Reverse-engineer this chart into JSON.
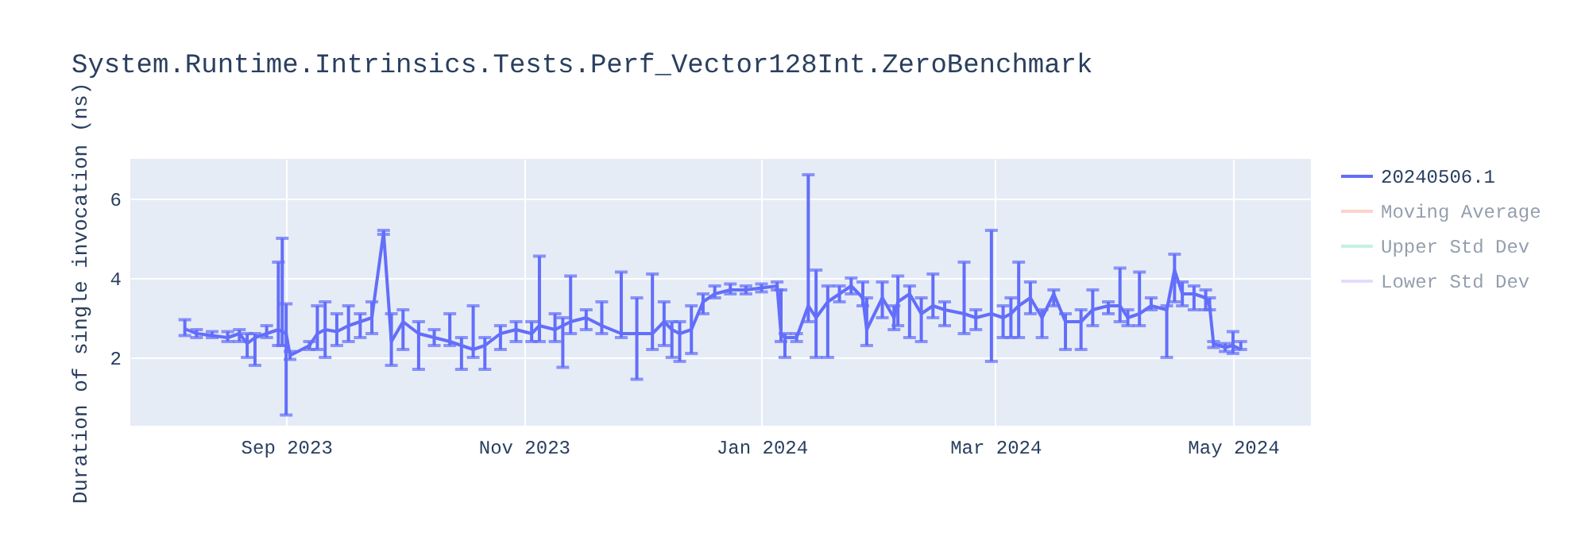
{
  "chart_data": {
    "type": "line",
    "title": "System.Runtime.Intrinsics.Tests.Perf_Vector128Int.ZeroBenchmark",
    "ylabel": "Duration of single invocation (ns)",
    "x": [
      "2023-08-06",
      "2023-08-09",
      "2023-08-13",
      "2023-08-17",
      "2023-08-20",
      "2023-08-22",
      "2023-08-24",
      "2023-08-27",
      "2023-08-30",
      "2023-08-31",
      "2023-09-01",
      "2023-09-02",
      "2023-09-07",
      "2023-09-09",
      "2023-09-11",
      "2023-09-14",
      "2023-09-17",
      "2023-09-20",
      "2023-09-23",
      "2023-09-26",
      "2023-09-28",
      "2023-10-01",
      "2023-10-05",
      "2023-10-09",
      "2023-10-13",
      "2023-10-16",
      "2023-10-19",
      "2023-10-22",
      "2023-10-26",
      "2023-10-30",
      "2023-11-03",
      "2023-11-05",
      "2023-11-09",
      "2023-11-11",
      "2023-11-13",
      "2023-11-17",
      "2023-11-21",
      "2023-11-26",
      "2023-11-30",
      "2023-12-04",
      "2023-12-07",
      "2023-12-09",
      "2023-12-11",
      "2023-12-14",
      "2023-12-17",
      "2023-12-20",
      "2023-12-24",
      "2023-12-28",
      "2024-01-01",
      "2024-01-05",
      "2024-01-06",
      "2024-01-07",
      "2024-01-10",
      "2024-01-13",
      "2024-01-15",
      "2024-01-18",
      "2024-01-21",
      "2024-01-24",
      "2024-01-27",
      "2024-01-28",
      "2024-02-01",
      "2024-02-04",
      "2024-02-05",
      "2024-02-08",
      "2024-02-11",
      "2024-02-14",
      "2024-02-17",
      "2024-02-22",
      "2024-02-25",
      "2024-02-29",
      "2024-03-03",
      "2024-03-05",
      "2024-03-07",
      "2024-03-10",
      "2024-03-13",
      "2024-03-16",
      "2024-03-19",
      "2024-03-23",
      "2024-03-26",
      "2024-03-30",
      "2024-04-02",
      "2024-04-04",
      "2024-04-07",
      "2024-04-10",
      "2024-04-14",
      "2024-04-16",
      "2024-04-18",
      "2024-04-21",
      "2024-04-24",
      "2024-04-25",
      "2024-04-26",
      "2024-04-29",
      "2024-05-01",
      "2024-05-03"
    ],
    "series": [
      {
        "name": "20240506.1",
        "color": "#636efa",
        "values": [
          2.72,
          2.6,
          2.55,
          2.5,
          2.6,
          2.35,
          2.5,
          2.6,
          2.7,
          2.65,
          2.6,
          2.05,
          2.3,
          2.6,
          2.7,
          2.65,
          2.8,
          2.9,
          3.0,
          5.15,
          2.4,
          2.9,
          2.6,
          2.5,
          2.4,
          2.3,
          2.2,
          2.3,
          2.6,
          2.7,
          2.6,
          2.8,
          2.7,
          2.8,
          2.9,
          3.0,
          2.8,
          2.6,
          2.6,
          2.6,
          2.9,
          2.7,
          2.6,
          2.7,
          3.4,
          3.6,
          3.7,
          3.7,
          3.75,
          3.8,
          2.6,
          2.5,
          2.5,
          3.3,
          3.0,
          3.4,
          3.6,
          3.8,
          3.5,
          2.7,
          3.5,
          3.0,
          3.4,
          3.6,
          3.1,
          3.3,
          3.2,
          3.1,
          3.0,
          3.1,
          3.0,
          3.1,
          3.3,
          3.5,
          3.0,
          3.6,
          2.9,
          2.9,
          3.2,
          3.3,
          3.3,
          3.0,
          3.1,
          3.3,
          3.2,
          4.2,
          3.6,
          3.6,
          3.5,
          3.3,
          2.35,
          2.25,
          2.3,
          2.2
        ],
        "errors": [
          [
            2.55,
            2.95
          ],
          [
            2.5,
            2.7
          ],
          [
            2.5,
            2.65
          ],
          [
            2.4,
            2.65
          ],
          [
            2.4,
            2.7
          ],
          [
            2.0,
            2.6
          ],
          [
            1.8,
            2.6
          ],
          [
            2.5,
            2.8
          ],
          [
            2.3,
            4.4
          ],
          [
            2.3,
            5.0
          ],
          [
            0.55,
            3.35
          ],
          [
            1.95,
            2.15
          ],
          [
            2.2,
            2.4
          ],
          [
            2.2,
            3.3
          ],
          [
            2.0,
            3.4
          ],
          [
            2.3,
            3.1
          ],
          [
            2.4,
            3.3
          ],
          [
            2.5,
            3.1
          ],
          [
            2.6,
            3.4
          ],
          [
            5.1,
            5.2
          ],
          [
            1.8,
            3.1
          ],
          [
            2.2,
            3.2
          ],
          [
            1.7,
            2.9
          ],
          [
            2.3,
            2.7
          ],
          [
            2.3,
            3.1
          ],
          [
            1.7,
            2.5
          ],
          [
            2.0,
            3.3
          ],
          [
            1.7,
            2.5
          ],
          [
            2.2,
            2.8
          ],
          [
            2.4,
            2.9
          ],
          [
            2.4,
            2.9
          ],
          [
            2.4,
            4.55
          ],
          [
            2.4,
            3.1
          ],
          [
            1.75,
            3.0
          ],
          [
            2.6,
            4.05
          ],
          [
            2.7,
            3.2
          ],
          [
            2.6,
            3.4
          ],
          [
            2.5,
            4.15
          ],
          [
            1.45,
            3.5
          ],
          [
            2.2,
            4.1
          ],
          [
            2.3,
            3.4
          ],
          [
            2.0,
            2.9
          ],
          [
            1.9,
            2.9
          ],
          [
            2.1,
            3.3
          ],
          [
            3.1,
            3.6
          ],
          [
            3.5,
            3.8
          ],
          [
            3.6,
            3.85
          ],
          [
            3.6,
            3.8
          ],
          [
            3.65,
            3.85
          ],
          [
            3.7,
            3.9
          ],
          [
            2.4,
            3.7
          ],
          [
            2.0,
            2.6
          ],
          [
            2.4,
            2.6
          ],
          [
            2.9,
            6.6
          ],
          [
            2.0,
            4.2
          ],
          [
            2.0,
            3.8
          ],
          [
            3.4,
            3.8
          ],
          [
            3.6,
            4.0
          ],
          [
            3.3,
            3.9
          ],
          [
            2.3,
            3.5
          ],
          [
            3.0,
            3.9
          ],
          [
            2.7,
            3.3
          ],
          [
            2.8,
            4.05
          ],
          [
            2.5,
            3.8
          ],
          [
            2.4,
            3.5
          ],
          [
            3.0,
            4.1
          ],
          [
            2.8,
            3.4
          ],
          [
            2.6,
            4.4
          ],
          [
            2.7,
            3.2
          ],
          [
            1.9,
            5.2
          ],
          [
            2.5,
            3.3
          ],
          [
            2.5,
            3.5
          ],
          [
            2.5,
            4.4
          ],
          [
            3.1,
            3.9
          ],
          [
            2.5,
            3.2
          ],
          [
            3.3,
            3.7
          ],
          [
            2.2,
            3.1
          ],
          [
            2.2,
            3.2
          ],
          [
            2.8,
            3.7
          ],
          [
            3.1,
            3.4
          ],
          [
            2.9,
            4.25
          ],
          [
            2.8,
            3.2
          ],
          [
            2.8,
            4.15
          ],
          [
            3.2,
            3.5
          ],
          [
            2.0,
            3.3
          ],
          [
            3.4,
            4.6
          ],
          [
            3.3,
            3.9
          ],
          [
            3.2,
            3.8
          ],
          [
            3.2,
            3.7
          ],
          [
            3.2,
            3.5
          ],
          [
            2.25,
            2.4
          ],
          [
            2.15,
            2.35
          ],
          [
            2.1,
            2.65
          ],
          [
            2.2,
            2.4
          ]
        ]
      },
      {
        "name": "Moving Average",
        "color": "#f4a897",
        "values": [
          null,
          null,
          null,
          null,
          null,
          null,
          null,
          null,
          null,
          null,
          null,
          null,
          null,
          null,
          null,
          null,
          null,
          null,
          null,
          null,
          null,
          null,
          null,
          null,
          null,
          null,
          null,
          null,
          null,
          null,
          null,
          null,
          null,
          null,
          null,
          null,
          null,
          null,
          null,
          null,
          null,
          null,
          null,
          null,
          null,
          null,
          null,
          null,
          null,
          null,
          null,
          null,
          null,
          null,
          null,
          null,
          null,
          null,
          null,
          null,
          null,
          null,
          null,
          null,
          null,
          null,
          null,
          null,
          null,
          null,
          null,
          null,
          null,
          null,
          null,
          null,
          null,
          null,
          null,
          null,
          null,
          null,
          null,
          null,
          null,
          null,
          null,
          null,
          null,
          null,
          null,
          null,
          null,
          null
        ]
      },
      {
        "name": "Upper Std Dev",
        "color": "#8de6c6",
        "values": [
          null,
          null,
          null,
          null,
          null,
          null,
          null,
          null,
          null,
          null,
          null,
          null,
          null,
          null,
          null,
          null,
          null,
          null,
          null,
          null,
          null,
          null,
          null,
          null,
          null,
          null,
          null,
          null,
          null,
          null,
          null,
          null,
          null,
          null,
          null,
          null,
          null,
          null,
          null,
          null,
          null,
          null,
          null,
          null,
          null,
          null,
          null,
          null,
          null,
          null,
          null,
          null,
          null,
          null,
          null,
          null,
          null,
          null,
          null,
          null,
          null,
          null,
          null,
          null,
          null,
          null,
          null,
          null,
          null,
          null,
          null,
          null,
          null,
          null,
          null,
          null,
          null,
          null,
          null,
          null,
          null,
          null,
          null,
          null,
          null,
          null,
          null,
          null,
          null,
          null,
          null,
          null,
          null,
          null
        ]
      },
      {
        "name": "Lower Std Dev",
        "color": "#ccbbf9",
        "values": [
          null,
          null,
          null,
          null,
          null,
          null,
          null,
          null,
          null,
          null,
          null,
          null,
          null,
          null,
          null,
          null,
          null,
          null,
          null,
          null,
          null,
          null,
          null,
          null,
          null,
          null,
          null,
          null,
          null,
          null,
          null,
          null,
          null,
          null,
          null,
          null,
          null,
          null,
          null,
          null,
          null,
          null,
          null,
          null,
          null,
          null,
          null,
          null,
          null,
          null,
          null,
          null,
          null,
          null,
          null,
          null,
          null,
          null,
          null,
          null,
          null,
          null,
          null,
          null,
          null,
          null,
          null,
          null,
          null,
          null,
          null,
          null,
          null,
          null,
          null,
          null,
          null,
          null,
          null,
          null,
          null,
          null,
          null,
          null,
          null,
          null,
          null,
          null,
          null,
          null,
          null,
          null,
          null,
          null
        ]
      }
    ],
    "xlim": [
      "2023-07-23",
      "2024-05-21"
    ],
    "xticks": [
      {
        "value": "2023-09-01",
        "label": "Sep 2023"
      },
      {
        "value": "2023-11-01",
        "label": "Nov 2023"
      },
      {
        "value": "2024-01-01",
        "label": "Jan 2024"
      },
      {
        "value": "2024-03-01",
        "label": "Mar 2024"
      },
      {
        "value": "2024-05-01",
        "label": "May 2024"
      }
    ],
    "ylim": [
      0.28,
      7.0
    ],
    "yticks": [
      2,
      4,
      6
    ],
    "grid": true,
    "legend": "top right",
    "marker": "none",
    "line_style": "solid"
  }
}
